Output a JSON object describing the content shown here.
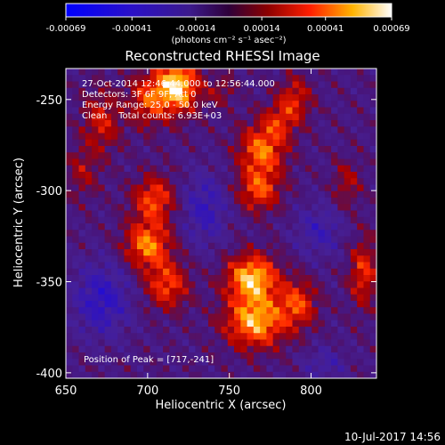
{
  "chart_data": {
    "type": "heatmap",
    "title": "Reconstructed RHESSI Image",
    "xlabel": "Heliocentric X (arcsec)",
    "ylabel": "Heliocentric Y (arcsec)",
    "xlim": [
      650,
      840
    ],
    "ylim": [
      -403,
      -233
    ],
    "xticks": [
      650,
      700,
      750,
      800
    ],
    "yticks": [
      -250,
      -300,
      -350,
      -400
    ],
    "colorbar": {
      "range": [
        -0.00069,
        0.00069
      ],
      "ticks": [
        "-0.00069",
        "-0.00041",
        "-0.00014",
        "0.00014",
        "0.00041",
        "0.00069"
      ],
      "tick_values": [
        -0.00069,
        -0.00041,
        -0.00014,
        0.00014,
        0.00041,
        0.00069
      ],
      "unit_label": "(photons cm⁻² s⁻¹ asec⁻²)"
    },
    "annotations": [
      "27-Oct-2014 12:46:44.000 to 12:56:44.000",
      "Detectors: 3F 6F 9F, Att 0",
      "Energy Range: 25.0 - 50.0 keV",
      "Clean    Total counts: 6.93E+03"
    ],
    "peak_label": "Position of Peak = [717,-241]",
    "peak": {
      "x": 717,
      "y": -241
    },
    "sources": [
      {
        "x": 718,
        "y": -243,
        "amp": 0.00069,
        "sx": 9,
        "sy": 10
      },
      {
        "x": 700,
        "y": -250,
        "amp": 0.00036,
        "sx": 8,
        "sy": 10
      },
      {
        "x": 672,
        "y": -262,
        "amp": 0.0003,
        "sx": 8,
        "sy": 12
      },
      {
        "x": 660,
        "y": -290,
        "amp": 0.0002,
        "sx": 7,
        "sy": 10
      },
      {
        "x": 704,
        "y": -305,
        "amp": 0.00042,
        "sx": 9,
        "sy": 9
      },
      {
        "x": 700,
        "y": -330,
        "amp": 0.0005,
        "sx": 10,
        "sy": 9
      },
      {
        "x": 712,
        "y": -352,
        "amp": 0.0004,
        "sx": 9,
        "sy": 9
      },
      {
        "x": 770,
        "y": -278,
        "amp": 0.00048,
        "sx": 10,
        "sy": 10
      },
      {
        "x": 768,
        "y": -300,
        "amp": 0.0004,
        "sx": 9,
        "sy": 8
      },
      {
        "x": 790,
        "y": -250,
        "amp": 0.00032,
        "sx": 7,
        "sy": 9
      },
      {
        "x": 780,
        "y": -262,
        "amp": 0.00026,
        "sx": 7,
        "sy": 7
      },
      {
        "x": 764,
        "y": -348,
        "amp": 0.00062,
        "sx": 11,
        "sy": 9
      },
      {
        "x": 766,
        "y": -372,
        "amp": 0.00058,
        "sx": 13,
        "sy": 10
      },
      {
        "x": 792,
        "y": -362,
        "amp": 0.00038,
        "sx": 8,
        "sy": 9
      },
      {
        "x": 832,
        "y": -345,
        "amp": 0.00036,
        "sx": 6,
        "sy": 13
      },
      {
        "x": 822,
        "y": -296,
        "amp": 0.00022,
        "sx": 6,
        "sy": 9
      },
      {
        "x": 745,
        "y": -245,
        "amp": 0.00018,
        "sx": 6,
        "sy": 6
      },
      {
        "x": 735,
        "y": -310,
        "amp": -0.00026,
        "sx": 10,
        "sy": 14
      },
      {
        "x": 672,
        "y": -360,
        "amp": -0.00032,
        "sx": 12,
        "sy": 14
      },
      {
        "x": 805,
        "y": -322,
        "amp": -0.00022,
        "sx": 10,
        "sy": 10
      },
      {
        "x": 808,
        "y": -395,
        "amp": -0.00018,
        "sx": 9,
        "sy": 6
      }
    ],
    "grid": false
  },
  "footer": {
    "datestamp": "10-Jul-2017 14:56"
  }
}
